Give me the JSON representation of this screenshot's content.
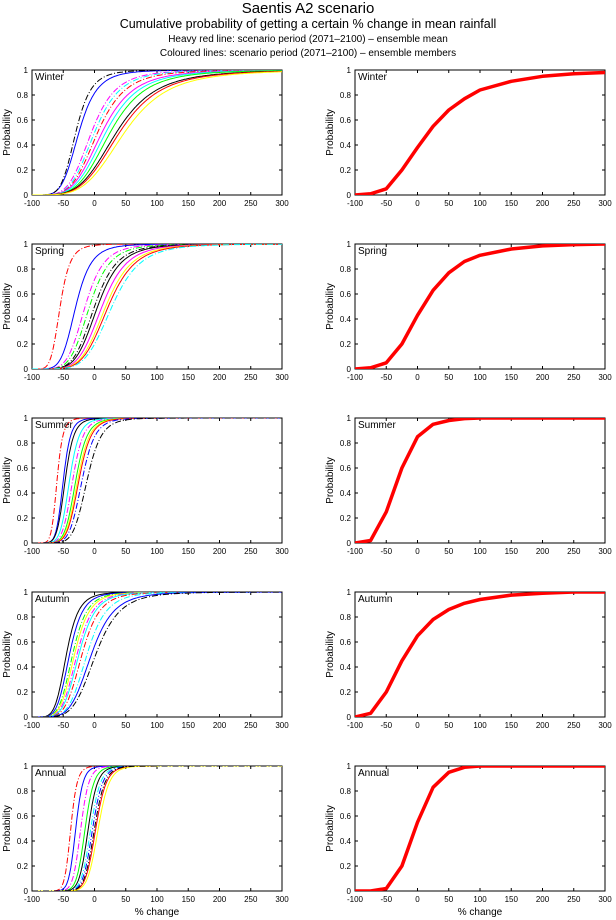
{
  "header": {
    "title": "Saentis A2 scenario",
    "subtitle": "Cumulative probability of getting a certain % change in mean rainfall",
    "line1": "Heavy red line: scenario period (2071–2100) – ensemble mean",
    "line2": "Coloured lines: scenario period (2071–2100) – ensemble members"
  },
  "chart_data": {
    "type": "line",
    "xlabel": "% change",
    "ylabel": "Probability",
    "xlim": [
      -100,
      300
    ],
    "ylim": [
      0,
      1
    ],
    "xticks": [
      "-100",
      "-50",
      "0",
      "50",
      "100",
      "150",
      "200",
      "250",
      "300"
    ],
    "yticks": [
      "0",
      "0.2",
      "0.4",
      "0.6",
      "0.8",
      "1"
    ],
    "grid": false,
    "mean_color": "#ff0000",
    "x": [
      -100,
      -75,
      -50,
      -25,
      0,
      25,
      50,
      75,
      100,
      150,
      200,
      250,
      300
    ],
    "panels": [
      {
        "season": "Winter",
        "ensemble_mean": [
          0,
          0.01,
          0.05,
          0.2,
          0.38,
          0.55,
          0.68,
          0.77,
          0.84,
          0.91,
          0.95,
          0.97,
          0.98
        ],
        "members": [
          {
            "color": "#0000ff",
            "dash": false,
            "median": -25,
            "spread": 0.33
          },
          {
            "color": "#000000",
            "dash": true,
            "median": -30,
            "spread": 0.3
          },
          {
            "color": "#ff00ff",
            "dash": true,
            "median": -5,
            "spread": 0.35
          },
          {
            "color": "#00ffff",
            "dash": true,
            "median": 0,
            "spread": 0.35
          },
          {
            "color": "#ff0000",
            "dash": true,
            "median": 5,
            "spread": 0.36
          },
          {
            "color": "#ff00ff",
            "dash": false,
            "median": 12,
            "spread": 0.38
          },
          {
            "color": "#00ffff",
            "dash": false,
            "median": 18,
            "spread": 0.38
          },
          {
            "color": "#00ff00",
            "dash": false,
            "median": 25,
            "spread": 0.38
          },
          {
            "color": "#000000",
            "dash": false,
            "median": 35,
            "spread": 0.4
          },
          {
            "color": "#ff0000",
            "dash": false,
            "median": 40,
            "spread": 0.4
          },
          {
            "color": "#ffff00",
            "dash": false,
            "median": 48,
            "spread": 0.4
          }
        ]
      },
      {
        "season": "Spring",
        "ensemble_mean": [
          0,
          0.01,
          0.05,
          0.2,
          0.43,
          0.63,
          0.77,
          0.86,
          0.91,
          0.96,
          0.985,
          0.995,
          1
        ],
        "members": [
          {
            "color": "#ff0000",
            "dash": true,
            "median": -55,
            "spread": 0.3
          },
          {
            "color": "#0000ff",
            "dash": false,
            "median": -30,
            "spread": 0.3
          },
          {
            "color": "#ff00ff",
            "dash": true,
            "median": -15,
            "spread": 0.3
          },
          {
            "color": "#00ff00",
            "dash": true,
            "median": -8,
            "spread": 0.3
          },
          {
            "color": "#000000",
            "dash": true,
            "median": 0,
            "spread": 0.3
          },
          {
            "color": "#000000",
            "dash": false,
            "median": 5,
            "spread": 0.3
          },
          {
            "color": "#ff00ff",
            "dash": false,
            "median": 12,
            "spread": 0.3
          },
          {
            "color": "#ffff00",
            "dash": false,
            "median": 18,
            "spread": 0.3
          },
          {
            "color": "#ff0000",
            "dash": false,
            "median": 22,
            "spread": 0.3
          },
          {
            "color": "#00ffff",
            "dash": true,
            "median": 28,
            "spread": 0.3
          }
        ]
      },
      {
        "season": "Summer",
        "ensemble_mean": [
          0,
          0.02,
          0.25,
          0.6,
          0.85,
          0.95,
          0.98,
          0.995,
          1,
          1,
          1,
          1,
          1
        ],
        "members": [
          {
            "color": "#ff0000",
            "dash": true,
            "median": -60,
            "spread": 0.2
          },
          {
            "color": "#0000ff",
            "dash": false,
            "median": -50,
            "spread": 0.2
          },
          {
            "color": "#000000",
            "dash": false,
            "median": -47,
            "spread": 0.22
          },
          {
            "color": "#00ffff",
            "dash": false,
            "median": -40,
            "spread": 0.22
          },
          {
            "color": "#ff00ff",
            "dash": true,
            "median": -35,
            "spread": 0.22
          },
          {
            "color": "#00ff00",
            "dash": false,
            "median": -30,
            "spread": 0.22
          },
          {
            "color": "#ffff00",
            "dash": false,
            "median": -27,
            "spread": 0.22
          },
          {
            "color": "#ff0000",
            "dash": false,
            "median": -25,
            "spread": 0.22
          },
          {
            "color": "#0000ff",
            "dash": true,
            "median": -20,
            "spread": 0.22
          },
          {
            "color": "#000000",
            "dash": true,
            "median": -12,
            "spread": 0.22
          }
        ]
      },
      {
        "season": "Autumn",
        "ensemble_mean": [
          0,
          0.03,
          0.2,
          0.45,
          0.65,
          0.78,
          0.86,
          0.91,
          0.94,
          0.975,
          0.99,
          1,
          1
        ],
        "members": [
          {
            "color": "#000000",
            "dash": false,
            "median": -45,
            "spread": 0.3
          },
          {
            "color": "#0000ff",
            "dash": false,
            "median": -40,
            "spread": 0.3
          },
          {
            "color": "#00ff00",
            "dash": true,
            "median": -35,
            "spread": 0.3
          },
          {
            "color": "#ffff00",
            "dash": false,
            "median": -32,
            "spread": 0.3
          },
          {
            "color": "#ff00ff",
            "dash": true,
            "median": -28,
            "spread": 0.3
          },
          {
            "color": "#00ffff",
            "dash": false,
            "median": -25,
            "spread": 0.3
          },
          {
            "color": "#ff0000",
            "dash": true,
            "median": -20,
            "spread": 0.3
          },
          {
            "color": "#00ffff",
            "dash": true,
            "median": -12,
            "spread": 0.3
          },
          {
            "color": "#0000ff",
            "dash": false,
            "median": -5,
            "spread": 0.32
          },
          {
            "color": "#000000",
            "dash": true,
            "median": 2,
            "spread": 0.32
          }
        ]
      },
      {
        "season": "Annual",
        "ensemble_mean": [
          0,
          0,
          0.02,
          0.2,
          0.55,
          0.83,
          0.95,
          0.99,
          1,
          1,
          1,
          1,
          1
        ],
        "members": [
          {
            "color": "#ff0000",
            "dash": true,
            "median": -38,
            "spread": 0.14
          },
          {
            "color": "#0000ff",
            "dash": false,
            "median": -30,
            "spread": 0.14
          },
          {
            "color": "#ff00ff",
            "dash": true,
            "median": -22,
            "spread": 0.14
          },
          {
            "color": "#00ff00",
            "dash": false,
            "median": -15,
            "spread": 0.14
          },
          {
            "color": "#000000",
            "dash": false,
            "median": -10,
            "spread": 0.14
          },
          {
            "color": "#00ffff",
            "dash": true,
            "median": -6,
            "spread": 0.14
          },
          {
            "color": "#0000ff",
            "dash": true,
            "median": -3,
            "spread": 0.14
          },
          {
            "color": "#ff0000",
            "dash": false,
            "median": 2,
            "spread": 0.14
          },
          {
            "color": "#ffff00",
            "dash": false,
            "median": 6,
            "spread": 0.14
          },
          {
            "color": "#000000",
            "dash": true,
            "median": 0,
            "spread": 0.14
          }
        ]
      }
    ]
  }
}
